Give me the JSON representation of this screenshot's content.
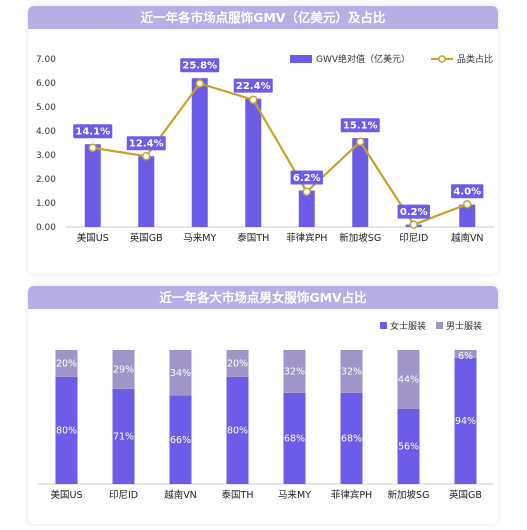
{
  "chart_data": [
    {
      "type": "bar",
      "title": "近一年各市场点服饰GMV（亿美元）及占比",
      "categories": [
        "美国US",
        "英国GB",
        "马来MY",
        "泰国TH",
        "菲律宾PH",
        "新加坡SG",
        "印尼ID",
        "越南VN"
      ],
      "series": [
        {
          "name": "GWV绝对值（亿美元）",
          "type": "bar",
          "values": [
            3.45,
            2.95,
            6.2,
            5.35,
            1.52,
            3.7,
            0.1,
            0.93
          ],
          "color": "#6c5ce7"
        },
        {
          "name": "品类占比",
          "type": "line",
          "values": [
            3.3,
            2.95,
            5.98,
            5.3,
            1.47,
            3.55,
            0.1,
            0.95
          ],
          "labels": [
            "14.1%",
            "12.4%",
            "25.8%",
            "22.4%",
            "6.2%",
            "15.1%",
            "0.2%",
            "4.0%"
          ],
          "color": "#c9a227"
        }
      ],
      "yticks": [
        "0.00",
        "1.00",
        "2.00",
        "3.00",
        "4.00",
        "5.00",
        "6.00",
        "7.00"
      ],
      "ylim": [
        0,
        7
      ],
      "legend_position": "top-right",
      "grid": false
    },
    {
      "type": "bar",
      "stacked": true,
      "title": "近一年各大市场点男女服饰GMV占比",
      "categories": [
        "美国US",
        "印尼ID",
        "越南VN",
        "泰国TH",
        "马来MY",
        "菲律宾PH",
        "新加坡SG",
        "英国GB"
      ],
      "series": [
        {
          "name": "女士服装",
          "values": [
            80,
            71,
            66,
            80,
            68,
            68,
            56,
            94
          ],
          "labels": [
            "80%",
            "71%",
            "66%",
            "80%",
            "68%",
            "68%",
            "56%",
            "94%"
          ],
          "color": "#6c5ce7"
        },
        {
          "name": "男士服装",
          "values": [
            20,
            29,
            34,
            20,
            32,
            32,
            44,
            6
          ],
          "labels": [
            "20%",
            "29%",
            "34%",
            "20%",
            "32%",
            "32%",
            "44%",
            "6%"
          ],
          "color": "#a095c9"
        }
      ],
      "ylim": [
        0,
        100
      ],
      "legend_position": "top-right",
      "grid": false
    }
  ]
}
